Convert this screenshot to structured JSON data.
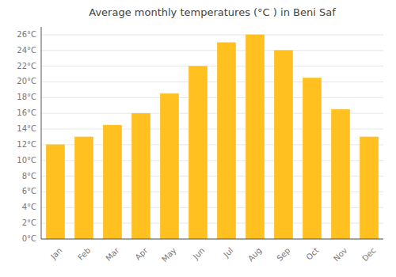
{
  "chart_data": {
    "type": "bar",
    "title": "Average monthly temperatures (°C ) in Beni Saf",
    "categories": [
      "Jan",
      "Feb",
      "Mar",
      "Apr",
      "May",
      "Jun",
      "Jul",
      "Aug",
      "Sep",
      "Oct",
      "Nov",
      "Dec"
    ],
    "values": [
      12,
      13,
      14.5,
      16,
      18.5,
      22,
      25,
      26,
      24,
      20.5,
      16.5,
      13
    ],
    "color": "#FFC020",
    "ylim": [
      0,
      27
    ],
    "yticks": [
      {
        "value": 0,
        "label": "0°C"
      },
      {
        "value": 2,
        "label": "2°C"
      },
      {
        "value": 4,
        "label": "4°C"
      },
      {
        "value": 6,
        "label": "6°C"
      },
      {
        "value": 8,
        "label": "8°C"
      },
      {
        "value": 10,
        "label": "10°C"
      },
      {
        "value": 12,
        "label": "12°C"
      },
      {
        "value": 14,
        "label": "14°C"
      },
      {
        "value": 16,
        "label": "16°C"
      },
      {
        "value": 18,
        "label": "18°C"
      },
      {
        "value": 20,
        "label": "20°C"
      },
      {
        "value": 22,
        "label": "22°C"
      },
      {
        "value": 24,
        "label": "24°C"
      },
      {
        "value": 26,
        "label": "26°C"
      }
    ],
    "grid": true
  }
}
